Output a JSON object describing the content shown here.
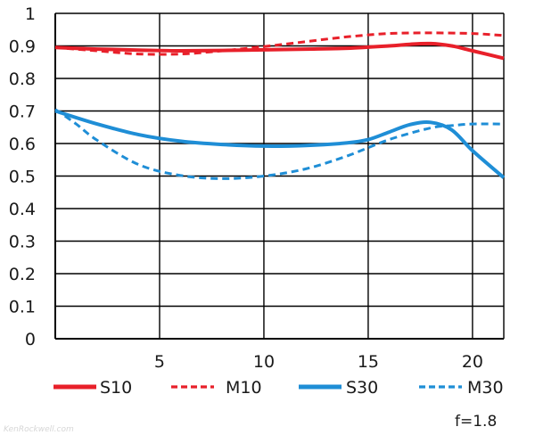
{
  "chart_data": {
    "type": "line",
    "title": "",
    "xlabel": "",
    "ylabel": "",
    "xlim": [
      0,
      21.5
    ],
    "ylim": [
      0,
      1
    ],
    "xticks": [
      5,
      10,
      15,
      20
    ],
    "yticks": [
      0,
      0.1,
      0.2,
      0.3,
      0.4,
      0.5,
      0.6,
      0.7,
      0.8,
      0.9,
      1
    ],
    "ytick_labels": [
      "0",
      "0.1",
      "0.2",
      "0.3",
      "0.4",
      "0.5",
      "0.6",
      "0.7",
      "0.8",
      "0.9",
      "1"
    ],
    "grid": true,
    "legend_position": "bottom",
    "series": [
      {
        "name": "S10",
        "color": "#e8202a",
        "style": "solid",
        "x": [
          0,
          2,
          4,
          6,
          8,
          10,
          12,
          14,
          16,
          17,
          18,
          19,
          20,
          21.5
        ],
        "y": [
          0.895,
          0.89,
          0.887,
          0.885,
          0.886,
          0.888,
          0.89,
          0.893,
          0.9,
          0.905,
          0.907,
          0.9,
          0.885,
          0.862
        ]
      },
      {
        "name": "M10",
        "color": "#e8202a",
        "style": "dashed",
        "x": [
          0,
          2,
          4,
          6,
          8,
          10,
          12,
          14,
          16,
          18,
          20,
          21.5
        ],
        "y": [
          0.895,
          0.885,
          0.875,
          0.875,
          0.885,
          0.898,
          0.913,
          0.928,
          0.938,
          0.94,
          0.938,
          0.932
        ]
      },
      {
        "name": "S30",
        "color": "#1f8ed6",
        "style": "solid",
        "x": [
          0,
          2,
          4,
          6,
          8,
          10,
          12,
          14,
          15,
          16,
          17,
          18,
          19,
          20,
          21.5
        ],
        "y": [
          0.7,
          0.66,
          0.627,
          0.607,
          0.597,
          0.592,
          0.594,
          0.602,
          0.612,
          0.635,
          0.658,
          0.665,
          0.642,
          0.578,
          0.495
        ]
      },
      {
        "name": "M30",
        "color": "#1f8ed6",
        "style": "dashed",
        "x": [
          0,
          1,
          2,
          4,
          6,
          8,
          10,
          12,
          14,
          16,
          18,
          19,
          20,
          21.5
        ],
        "y": [
          0.705,
          0.66,
          0.61,
          0.535,
          0.502,
          0.492,
          0.5,
          0.522,
          0.562,
          0.612,
          0.648,
          0.655,
          0.66,
          0.66
        ]
      }
    ],
    "annotation": "f=1.8"
  },
  "watermark": "KenRockwell.com"
}
